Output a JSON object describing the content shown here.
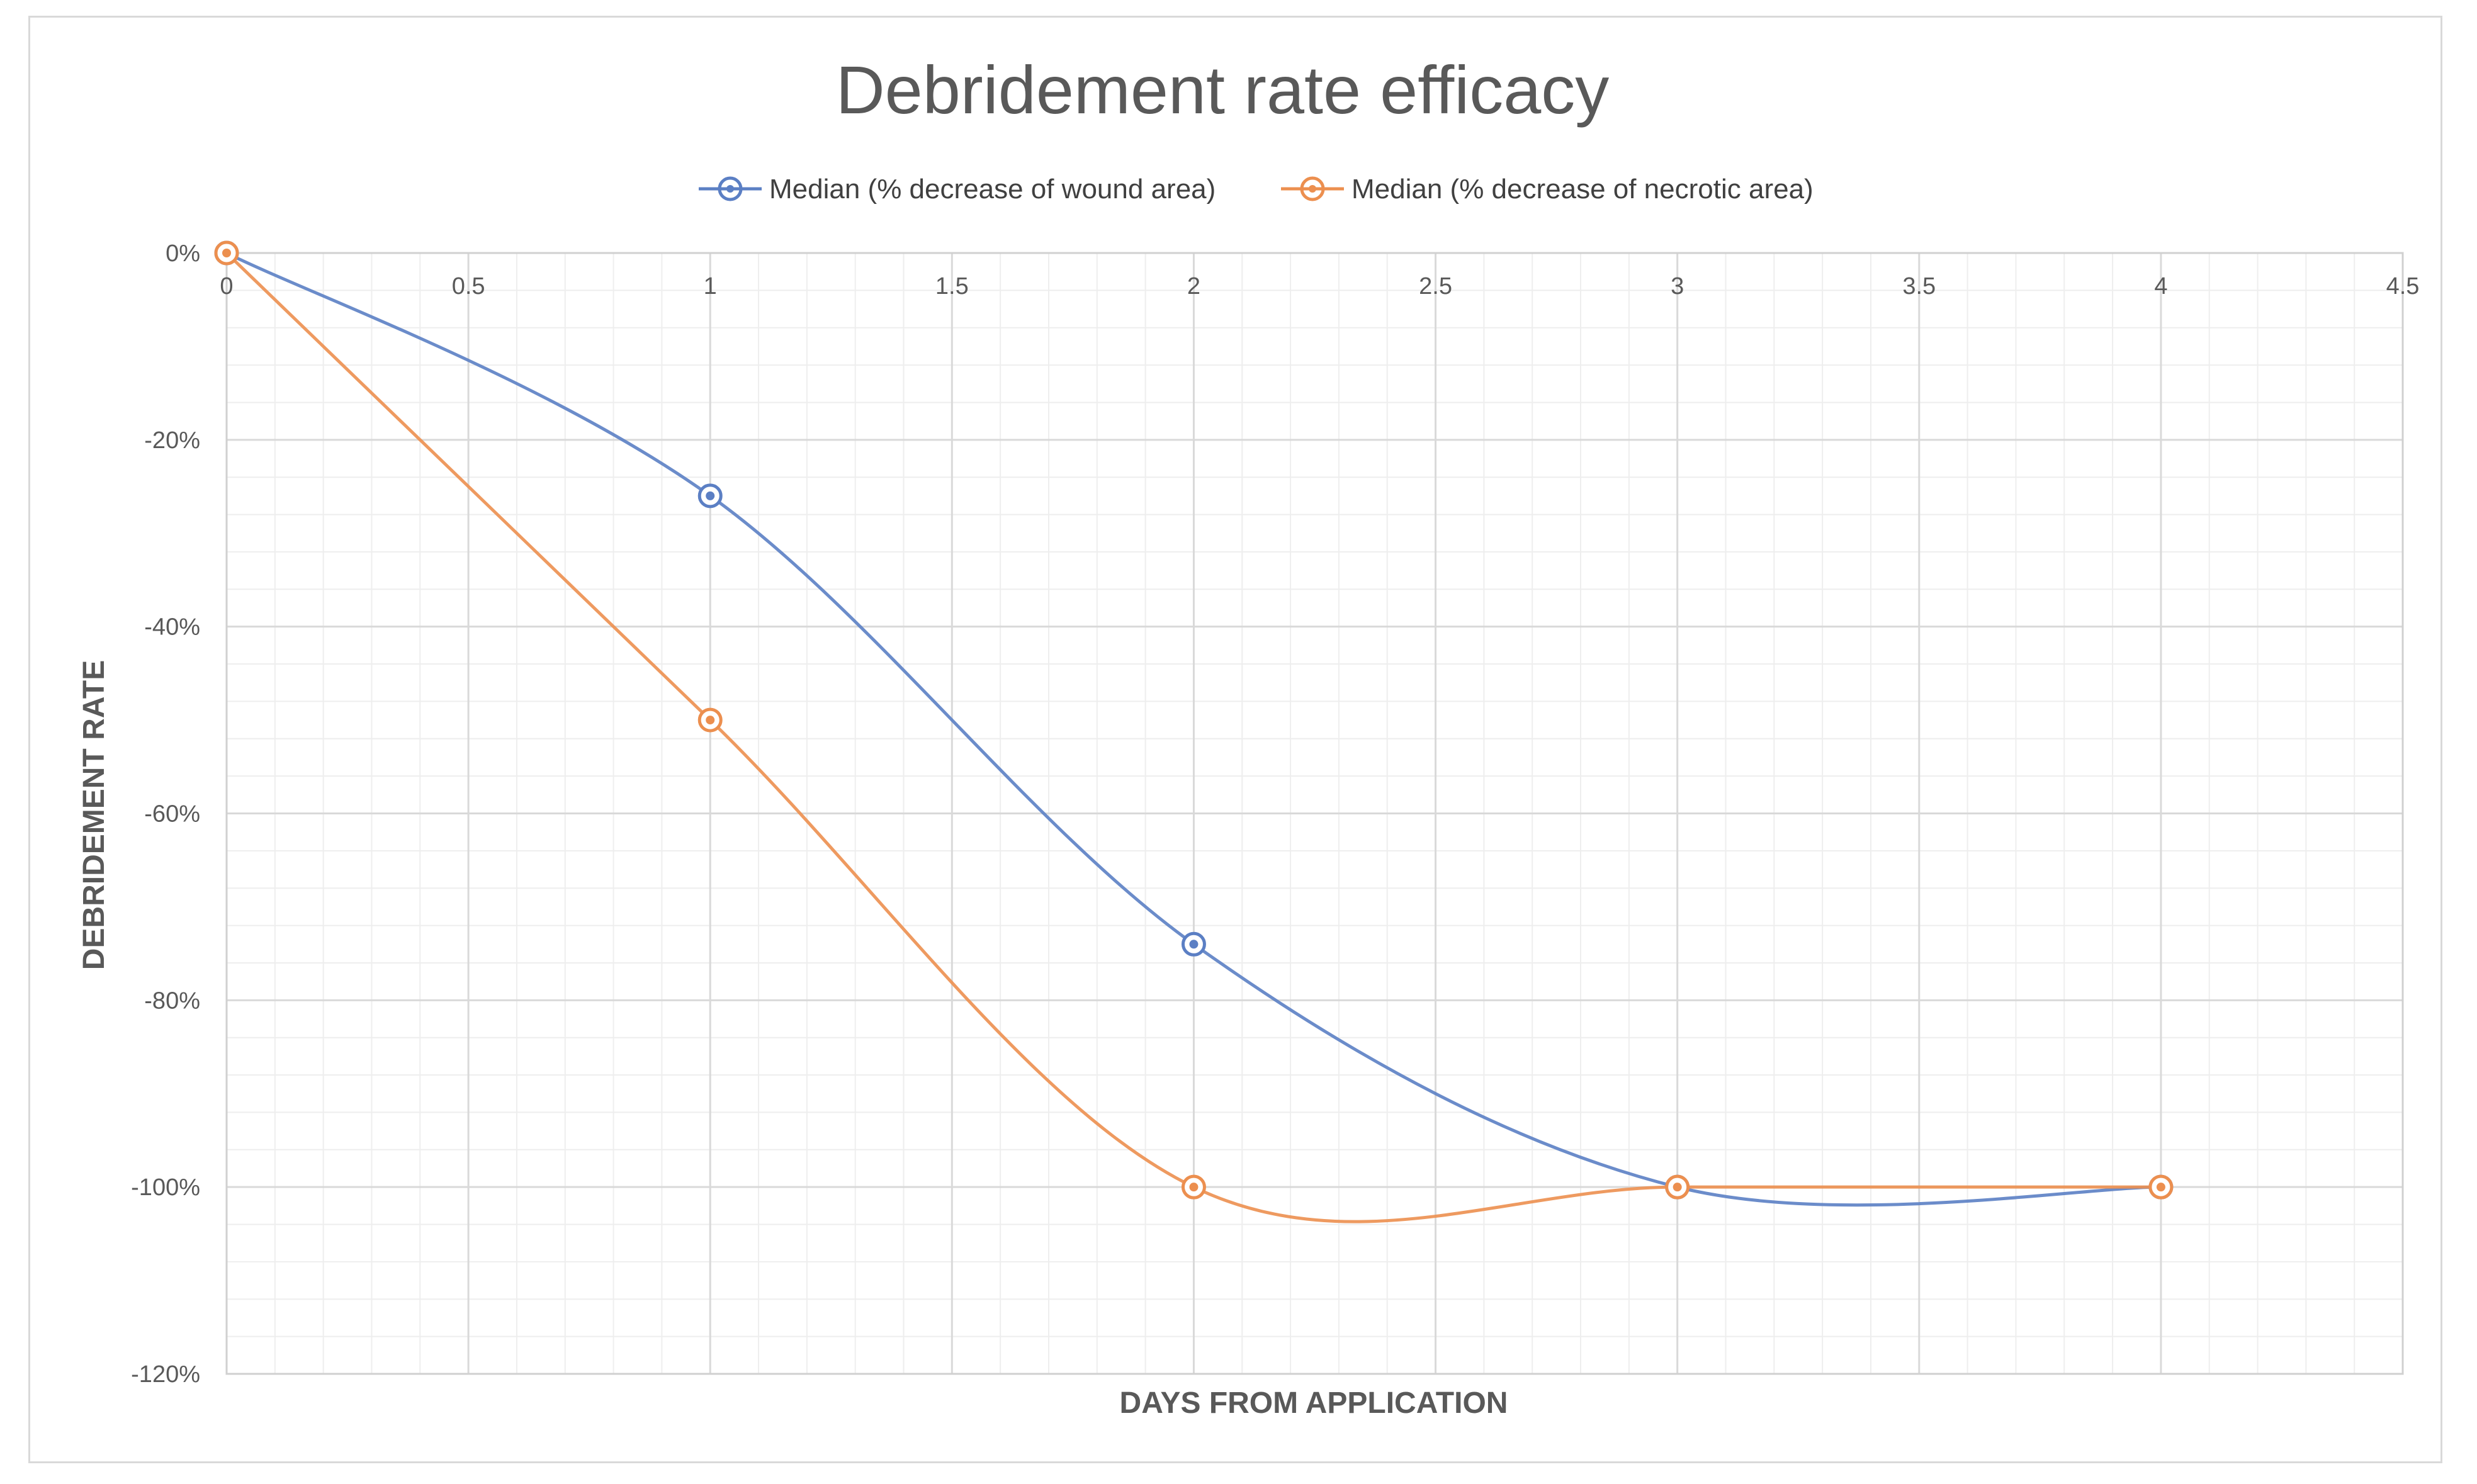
{
  "chart_data": {
    "type": "scatter",
    "title": "Debridement rate efficacy",
    "xlabel": "DAYS FROM APPLICATION",
    "ylabel": "DEBRIDEMENT RATE",
    "xlim": [
      0,
      4.5
    ],
    "ylim": [
      -120,
      0
    ],
    "x_ticks": [
      "0",
      "0.5",
      "1",
      "1.5",
      "2",
      "2.5",
      "3",
      "3.5",
      "4",
      "4.5"
    ],
    "y_ticks": [
      "0%",
      "-20%",
      "-40%",
      "-60%",
      "-80%",
      "-100%",
      "-120%"
    ],
    "grid": true,
    "legend_position": "top",
    "smoothed_lines": true,
    "series": [
      {
        "name": "Median (% decrease of wound area)",
        "color": "#5b7fc4",
        "x": [
          0,
          1,
          2,
          3,
          4
        ],
        "y": [
          0,
          -26,
          -74,
          -100,
          -100
        ]
      },
      {
        "name": "Median (% decrease of necrotic area)",
        "color": "#ec8f4f",
        "x": [
          0,
          1,
          2,
          3,
          4
        ],
        "y": [
          0,
          -50,
          -100,
          -100,
          -100
        ]
      }
    ]
  }
}
